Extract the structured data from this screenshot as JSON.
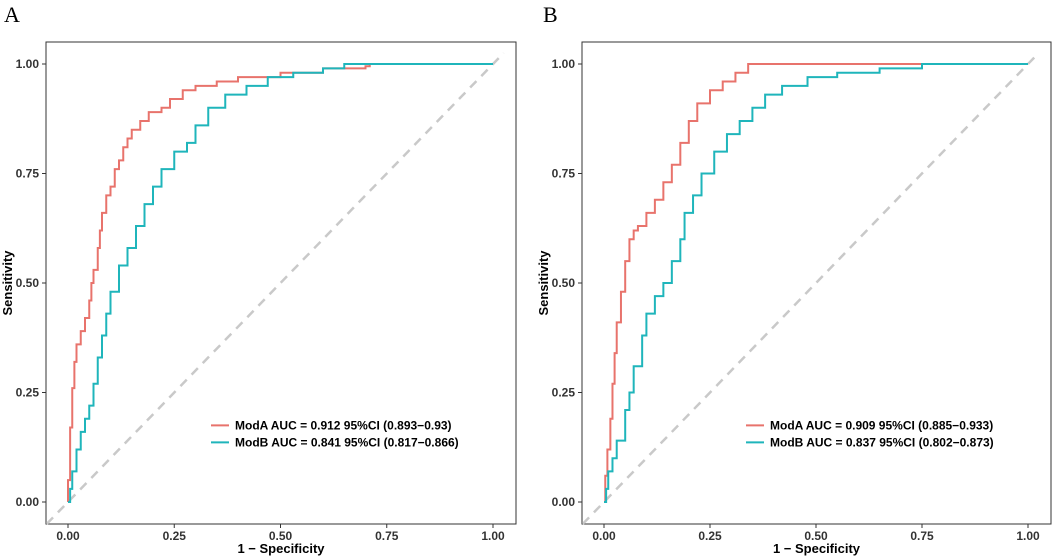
{
  "chart_data": [
    {
      "type": "line",
      "panel_label": "A",
      "xlabel": "1 − Specificity",
      "ylabel": "Sensitivity",
      "xlim": [
        0,
        1
      ],
      "ylim": [
        0,
        1
      ],
      "x_ticks": [
        "0.00",
        "0.25",
        "0.50",
        "0.75",
        "1.00"
      ],
      "y_ticks": [
        "0.00",
        "0.25",
        "0.50",
        "0.75",
        "1.00"
      ],
      "legend_position": "bottom-right",
      "diagonal": true,
      "series": [
        {
          "name": "ModA AUC = 0.912 95%CI (0.893−0.93)",
          "color": "#E8736C",
          "points": [
            [
              0,
              0
            ],
            [
              0,
              0.05
            ],
            [
              0.005,
              0.17
            ],
            [
              0.01,
              0.26
            ],
            [
              0.015,
              0.32
            ],
            [
              0.02,
              0.36
            ],
            [
              0.03,
              0.39
            ],
            [
              0.04,
              0.42
            ],
            [
              0.05,
              0.46
            ],
            [
              0.055,
              0.5
            ],
            [
              0.06,
              0.53
            ],
            [
              0.07,
              0.58
            ],
            [
              0.075,
              0.62
            ],
            [
              0.08,
              0.66
            ],
            [
              0.09,
              0.7
            ],
            [
              0.1,
              0.72
            ],
            [
              0.11,
              0.76
            ],
            [
              0.12,
              0.78
            ],
            [
              0.13,
              0.81
            ],
            [
              0.14,
              0.83
            ],
            [
              0.15,
              0.85
            ],
            [
              0.17,
              0.87
            ],
            [
              0.19,
              0.89
            ],
            [
              0.22,
              0.9
            ],
            [
              0.24,
              0.92
            ],
            [
              0.27,
              0.94
            ],
            [
              0.3,
              0.95
            ],
            [
              0.35,
              0.96
            ],
            [
              0.4,
              0.97
            ],
            [
              0.5,
              0.98
            ],
            [
              0.6,
              0.99
            ],
            [
              0.7,
              0.995
            ],
            [
              0.71,
              1.0
            ]
          ]
        },
        {
          "name": "ModB AUC = 0.841 95%CI (0.817−0.866)",
          "color": "#1FB5BB",
          "points": [
            [
              0,
              0
            ],
            [
              0.005,
              0.03
            ],
            [
              0.01,
              0.07
            ],
            [
              0.02,
              0.12
            ],
            [
              0.03,
              0.16
            ],
            [
              0.04,
              0.19
            ],
            [
              0.05,
              0.22
            ],
            [
              0.06,
              0.27
            ],
            [
              0.07,
              0.33
            ],
            [
              0.08,
              0.38
            ],
            [
              0.09,
              0.43
            ],
            [
              0.1,
              0.48
            ],
            [
              0.12,
              0.54
            ],
            [
              0.14,
              0.58
            ],
            [
              0.16,
              0.63
            ],
            [
              0.18,
              0.68
            ],
            [
              0.2,
              0.72
            ],
            [
              0.22,
              0.76
            ],
            [
              0.25,
              0.8
            ],
            [
              0.28,
              0.82
            ],
            [
              0.3,
              0.86
            ],
            [
              0.33,
              0.9
            ],
            [
              0.37,
              0.93
            ],
            [
              0.42,
              0.95
            ],
            [
              0.47,
              0.97
            ],
            [
              0.53,
              0.98
            ],
            [
              0.6,
              0.99
            ],
            [
              0.65,
              1.0
            ],
            [
              1.0,
              1.0
            ]
          ]
        }
      ]
    },
    {
      "type": "line",
      "panel_label": "B",
      "xlabel": "1 − Specificity",
      "ylabel": "Sensitivity",
      "xlim": [
        0,
        1
      ],
      "ylim": [
        0,
        1
      ],
      "x_ticks": [
        "0.00",
        "0.25",
        "0.50",
        "0.75",
        "1.00"
      ],
      "y_ticks": [
        "0.00",
        "0.25",
        "0.50",
        "0.75",
        "1.00"
      ],
      "legend_position": "bottom-right",
      "diagonal": true,
      "series": [
        {
          "name": "ModA AUC = 0.909 95%CI (0.885−0.933)",
          "color": "#E8736C",
          "points": [
            [
              0,
              0
            ],
            [
              0.003,
              0.06
            ],
            [
              0.008,
              0.12
            ],
            [
              0.015,
              0.19
            ],
            [
              0.02,
              0.27
            ],
            [
              0.025,
              0.34
            ],
            [
              0.03,
              0.41
            ],
            [
              0.04,
              0.48
            ],
            [
              0.05,
              0.55
            ],
            [
              0.06,
              0.6
            ],
            [
              0.07,
              0.62
            ],
            [
              0.08,
              0.63
            ],
            [
              0.1,
              0.66
            ],
            [
              0.12,
              0.69
            ],
            [
              0.14,
              0.73
            ],
            [
              0.16,
              0.77
            ],
            [
              0.18,
              0.82
            ],
            [
              0.2,
              0.87
            ],
            [
              0.22,
              0.91
            ],
            [
              0.25,
              0.94
            ],
            [
              0.28,
              0.96
            ],
            [
              0.31,
              0.98
            ],
            [
              0.34,
              1.0
            ],
            [
              0.75,
              1.0
            ]
          ]
        },
        {
          "name": "ModB AUC = 0.837 95%CI (0.802−0.873)",
          "color": "#1FB5BB",
          "points": [
            [
              0,
              0
            ],
            [
              0.005,
              0.03
            ],
            [
              0.01,
              0.07
            ],
            [
              0.02,
              0.1
            ],
            [
              0.03,
              0.14
            ],
            [
              0.05,
              0.21
            ],
            [
              0.06,
              0.25
            ],
            [
              0.07,
              0.31
            ],
            [
              0.09,
              0.38
            ],
            [
              0.1,
              0.43
            ],
            [
              0.12,
              0.47
            ],
            [
              0.14,
              0.5
            ],
            [
              0.16,
              0.55
            ],
            [
              0.18,
              0.6
            ],
            [
              0.19,
              0.66
            ],
            [
              0.21,
              0.7
            ],
            [
              0.23,
              0.75
            ],
            [
              0.26,
              0.8
            ],
            [
              0.29,
              0.84
            ],
            [
              0.32,
              0.87
            ],
            [
              0.35,
              0.9
            ],
            [
              0.38,
              0.93
            ],
            [
              0.42,
              0.95
            ],
            [
              0.48,
              0.97
            ],
            [
              0.55,
              0.98
            ],
            [
              0.65,
              0.99
            ],
            [
              0.75,
              1.0
            ],
            [
              1.0,
              1.0
            ]
          ]
        }
      ]
    }
  ]
}
